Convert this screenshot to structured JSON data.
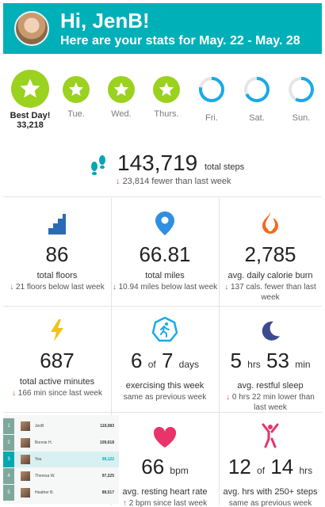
{
  "header": {
    "greeting": "Hi, JenB!",
    "subtitle": "Here are your stats for May. 22 - May. 28",
    "accent": "#00b0b9"
  },
  "days": [
    {
      "label": "Best Day!",
      "value": "33,218",
      "status": "best",
      "progress": 1.0
    },
    {
      "label": "Tue.",
      "status": "goal-met",
      "progress": 1.0
    },
    {
      "label": "Wed.",
      "status": "goal-met",
      "progress": 1.0
    },
    {
      "label": "Thurs.",
      "status": "goal-met",
      "progress": 1.0
    },
    {
      "label": "Fri.",
      "status": "partial",
      "progress": 0.78
    },
    {
      "label": "Sat.",
      "status": "partial",
      "progress": 0.68
    },
    {
      "label": "Sun.",
      "status": "partial",
      "progress": 0.58
    }
  ],
  "steps": {
    "value": "143,719",
    "unit": "total steps",
    "delta": "23,814 fewer than last week"
  },
  "cards": {
    "floors": {
      "value": "86",
      "label": "total floors",
      "delta": "21 floors below last week",
      "icon": "stairs-icon"
    },
    "miles": {
      "value": "66.81",
      "label": "total miles",
      "delta": "10.94 miles below last week",
      "icon": "location-pin-icon"
    },
    "calories": {
      "value": "2,785",
      "label": "avg. daily calorie burn",
      "delta": "137 cals. fewer than last week",
      "icon": "flame-icon"
    },
    "active": {
      "value": "687",
      "label": "total active minutes",
      "delta": "166 min since last week",
      "icon": "lightning-icon"
    },
    "exercise": {
      "value": "6",
      "of": "of",
      "total": "7",
      "unit": "days",
      "label": "exercising this week",
      "same": "same as previous week",
      "icon": "runner-badge-icon"
    },
    "sleep": {
      "hours": "5",
      "hours_unit": "hrs",
      "minutes": "53",
      "minutes_unit": "min",
      "label": "avg. restful sleep",
      "delta": "0 hrs 22 min lower than last week",
      "icon": "moon-icon"
    },
    "heart": {
      "value": "66",
      "unit": "bpm",
      "label": "avg. resting heart rate",
      "delta": "2 bpm since last week",
      "icon": "heart-icon"
    },
    "hourly": {
      "value": "12",
      "of": "of",
      "total": "14",
      "unit": "hrs",
      "label": "avg. hrs with 250+ steps",
      "same": "same as previous week",
      "icon": "stretch-figure-icon"
    }
  },
  "leaderboard": [
    {
      "rank": "1",
      "name": "JenB",
      "value": "119,083"
    },
    {
      "rank": "2",
      "name": "Bonnie H.",
      "value": "109,618"
    },
    {
      "rank": "3",
      "name": "You",
      "value": "99,122"
    },
    {
      "rank": "4",
      "name": "Theresa W.",
      "value": "97,225"
    },
    {
      "rank": "5",
      "name": "Heather B.",
      "value": "89,517"
    }
  ],
  "colors": {
    "green": "#9bd11f",
    "teal": "#00b0b9",
    "ring": "#1aa9e6",
    "floors": "#2b6bb5",
    "miles": "#2f8fe0",
    "calories": "#f26b1d",
    "active": "#f2c01e",
    "exercise": "#1aa9e6",
    "sleep": "#3d4a8f",
    "heart": "#e8336b",
    "hourly": "#e8336b"
  }
}
